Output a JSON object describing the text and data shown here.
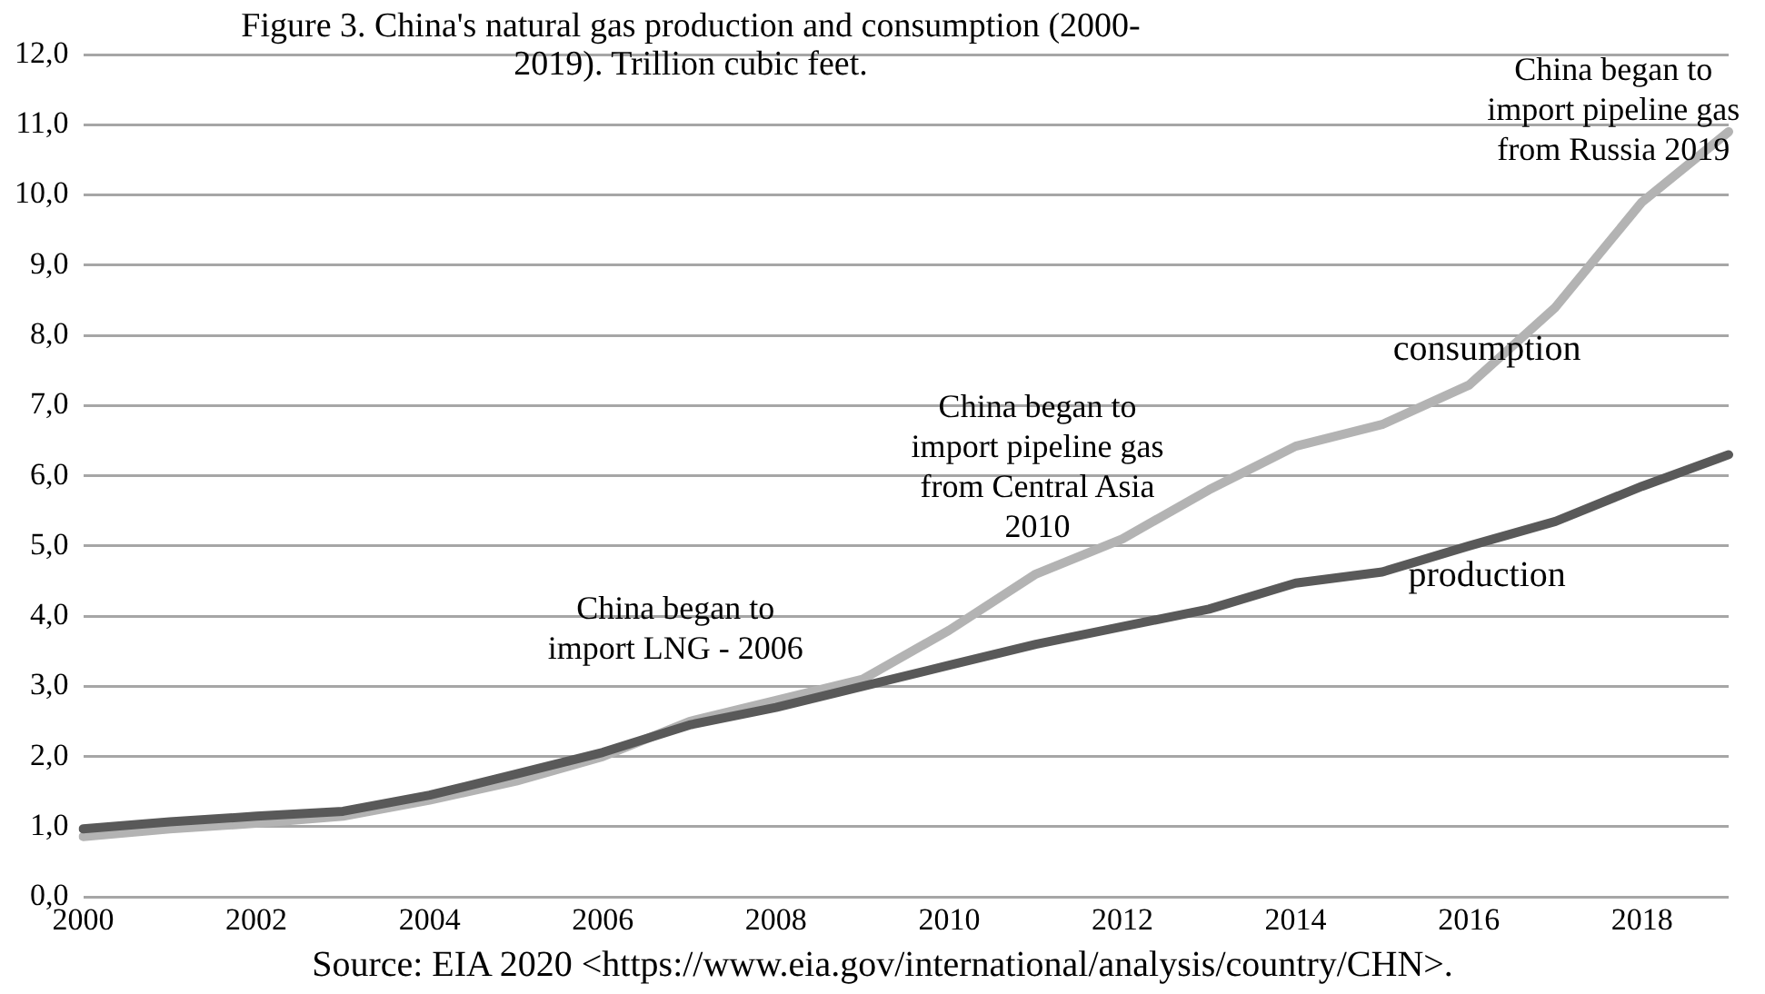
{
  "chart_data": {
    "type": "line",
    "title": "Figure 3. China's natural gas production and consumption (2000-2019). Trillion cubic feet.",
    "categories": [
      "2000",
      null,
      "2002",
      null,
      "2004",
      null,
      "2006",
      null,
      "2008",
      null,
      "2010",
      null,
      "2012",
      null,
      "2014",
      null,
      "2016",
      null,
      "2018",
      null
    ],
    "series": [
      {
        "name": "production",
        "color": "#595959",
        "values": [
          0.97,
          1.07,
          1.15,
          1.22,
          1.45,
          1.75,
          2.06,
          2.45,
          2.7,
          3.0,
          3.3,
          3.6,
          3.85,
          4.1,
          4.47,
          4.63,
          5.0,
          5.35,
          5.85,
          6.3
        ]
      },
      {
        "name": "consumption",
        "color": "#b3b3b3",
        "values": [
          0.86,
          0.97,
          1.05,
          1.15,
          1.38,
          1.65,
          2.0,
          2.5,
          2.8,
          3.1,
          3.8,
          4.6,
          5.1,
          5.8,
          6.42,
          6.73,
          7.29,
          8.4,
          9.9,
          10.9
        ]
      }
    ],
    "ylim": [
      0,
      12
    ],
    "yticks": [
      {
        "value": 0,
        "label": "0,0"
      },
      {
        "value": 1,
        "label": "1,0"
      },
      {
        "value": 2,
        "label": "2,0"
      },
      {
        "value": 3,
        "label": "3,0"
      },
      {
        "value": 4,
        "label": "4,0"
      },
      {
        "value": 5,
        "label": "5,0"
      },
      {
        "value": 6,
        "label": "6,0"
      },
      {
        "value": 7,
        "label": "7,0"
      },
      {
        "value": 8,
        "label": "8,0"
      },
      {
        "value": 9,
        "label": "9,0"
      },
      {
        "value": 10,
        "label": "10,0"
      },
      {
        "value": 11,
        "label": "11,0"
      },
      {
        "value": 12,
        "label": "12,0"
      }
    ],
    "grid": "y",
    "legend": false,
    "marker": "none",
    "line_style": "solid",
    "annotations": [
      "China began to\nimport LNG - 2006",
      "China began to\nimport pipeline gas\nfrom Central Asia\n2010",
      "China began to\nimport pipeline gas\nfrom Russia 2019",
      "Source: EIA 2020 <https://www.eia.gov/international/analysis/country/CHN>."
    ]
  }
}
